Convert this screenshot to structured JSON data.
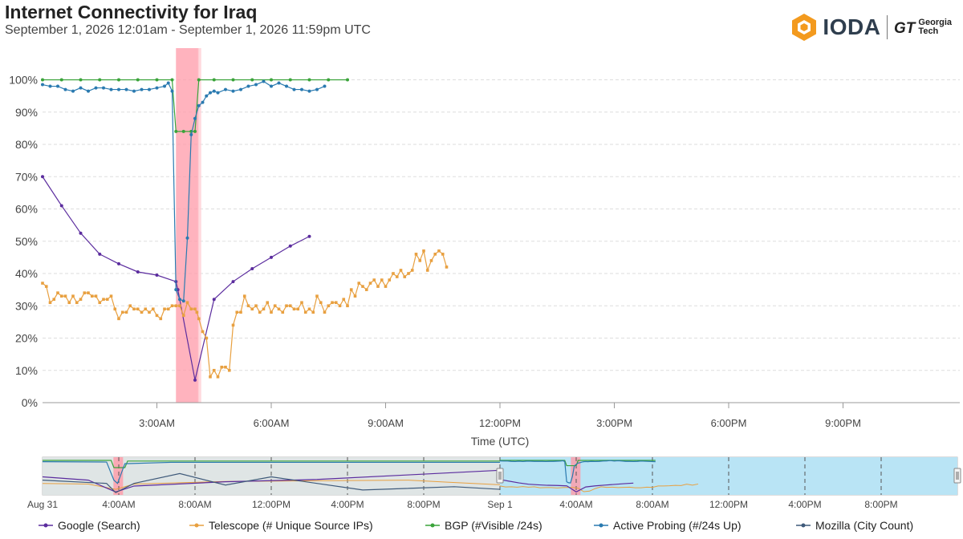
{
  "header": {
    "title": "Internet Connectivity for Iraq",
    "subtitle": "September 1, 2026 12:01am - September 1, 2026 11:59pm UTC",
    "logo_text": "IODA",
    "partner_logo": "Georgia Tech"
  },
  "colors": {
    "google": "#5b2c9e",
    "telescope": "#e8a040",
    "bgp": "#3aa33a",
    "probing": "#2a7ab0",
    "mozilla": "#3f5a7a",
    "outage_band": "#ff9aa8",
    "nav_fill": "#b9e4f5",
    "ioda_orange": "#f39a1e"
  },
  "chart_data": {
    "type": "line",
    "xlabel": "Time (UTC)",
    "xlim": [
      0,
      24
    ],
    "ylim": [
      0,
      100
    ],
    "y_ticks": [
      "0%",
      "10%",
      "20%",
      "30%",
      "40%",
      "50%",
      "60%",
      "70%",
      "80%",
      "90%",
      "100%"
    ],
    "x_ticks": [
      {
        "x": 3,
        "label": "3:00AM"
      },
      {
        "x": 6,
        "label": "6:00AM"
      },
      {
        "x": 9,
        "label": "9:00AM"
      },
      {
        "x": 12,
        "label": "12:00PM"
      },
      {
        "x": 15,
        "label": "3:00PM"
      },
      {
        "x": 18,
        "label": "6:00PM"
      },
      {
        "x": 21,
        "label": "9:00PM"
      }
    ],
    "outage_band": [
      3.5,
      4.1
    ],
    "series": [
      {
        "name": "Google (Search)",
        "key": "google",
        "marker": "dot",
        "points": [
          [
            0.0,
            70
          ],
          [
            0.5,
            61
          ],
          [
            1.0,
            52.5
          ],
          [
            1.5,
            46
          ],
          [
            2.0,
            43
          ],
          [
            2.5,
            40.5
          ],
          [
            3.0,
            39.5
          ],
          [
            3.5,
            37.5
          ],
          [
            3.55,
            35
          ],
          [
            4.0,
            7
          ],
          [
            4.5,
            32
          ],
          [
            5.0,
            37.5
          ],
          [
            5.5,
            41.5
          ],
          [
            6.0,
            45
          ],
          [
            6.5,
            48.5
          ],
          [
            7.0,
            51.5
          ]
        ]
      },
      {
        "name": "Telescope (# Unique Source IPs)",
        "key": "telescope",
        "marker": "square",
        "points": [
          [
            0.0,
            37
          ],
          [
            0.1,
            36
          ],
          [
            0.2,
            31
          ],
          [
            0.3,
            32
          ],
          [
            0.4,
            34
          ],
          [
            0.5,
            33
          ],
          [
            0.6,
            33
          ],
          [
            0.7,
            31
          ],
          [
            0.8,
            33
          ],
          [
            0.9,
            31
          ],
          [
            1.0,
            32
          ],
          [
            1.1,
            34
          ],
          [
            1.2,
            34
          ],
          [
            1.3,
            33
          ],
          [
            1.4,
            33
          ],
          [
            1.5,
            31
          ],
          [
            1.6,
            32
          ],
          [
            1.7,
            32
          ],
          [
            1.8,
            33
          ],
          [
            1.9,
            29
          ],
          [
            2.0,
            26
          ],
          [
            2.1,
            28
          ],
          [
            2.2,
            28
          ],
          [
            2.3,
            30
          ],
          [
            2.4,
            29
          ],
          [
            2.5,
            29
          ],
          [
            2.6,
            28
          ],
          [
            2.7,
            29
          ],
          [
            2.8,
            28
          ],
          [
            2.9,
            29
          ],
          [
            3.0,
            27
          ],
          [
            3.1,
            26
          ],
          [
            3.2,
            29
          ],
          [
            3.3,
            29
          ],
          [
            3.4,
            30
          ],
          [
            3.5,
            30
          ],
          [
            3.6,
            30
          ],
          [
            3.7,
            27
          ],
          [
            3.8,
            31
          ],
          [
            3.9,
            29
          ],
          [
            4.0,
            29
          ],
          [
            4.05,
            28
          ],
          [
            4.1,
            26
          ],
          [
            4.2,
            22
          ],
          [
            4.3,
            20
          ],
          [
            4.4,
            8
          ],
          [
            4.5,
            10
          ],
          [
            4.6,
            8
          ],
          [
            4.7,
            11
          ],
          [
            4.8,
            11
          ],
          [
            4.9,
            10
          ],
          [
            5.0,
            24
          ],
          [
            5.1,
            28
          ],
          [
            5.2,
            28
          ],
          [
            5.3,
            33
          ],
          [
            5.4,
            30
          ],
          [
            5.5,
            29
          ],
          [
            5.6,
            30
          ],
          [
            5.7,
            28
          ],
          [
            5.8,
            29
          ],
          [
            5.9,
            31
          ],
          [
            6.0,
            28
          ],
          [
            6.1,
            30
          ],
          [
            6.2,
            29
          ],
          [
            6.3,
            28
          ],
          [
            6.4,
            30
          ],
          [
            6.5,
            30
          ],
          [
            6.6,
            29
          ],
          [
            6.7,
            29
          ],
          [
            6.8,
            31
          ],
          [
            6.9,
            28
          ],
          [
            7.0,
            29
          ],
          [
            7.1,
            28
          ],
          [
            7.2,
            33
          ],
          [
            7.3,
            31
          ],
          [
            7.4,
            28
          ],
          [
            7.5,
            30
          ],
          [
            7.6,
            31
          ],
          [
            7.7,
            31
          ],
          [
            7.8,
            30
          ],
          [
            7.9,
            32
          ],
          [
            8.0,
            30
          ],
          [
            8.1,
            35
          ],
          [
            8.2,
            33
          ],
          [
            8.3,
            37
          ],
          [
            8.4,
            36
          ],
          [
            8.5,
            35
          ],
          [
            8.6,
            37
          ],
          [
            8.7,
            38
          ],
          [
            8.8,
            36
          ],
          [
            8.9,
            38
          ],
          [
            9.0,
            36
          ],
          [
            9.1,
            38
          ],
          [
            9.2,
            40
          ],
          [
            9.3,
            39
          ],
          [
            9.4,
            41
          ],
          [
            9.5,
            39
          ],
          [
            9.6,
            40
          ],
          [
            9.7,
            41
          ],
          [
            9.8,
            46
          ],
          [
            9.9,
            44
          ],
          [
            10.0,
            47
          ],
          [
            10.1,
            41
          ],
          [
            10.2,
            44
          ],
          [
            10.3,
            46
          ],
          [
            10.4,
            47
          ],
          [
            10.5,
            46
          ],
          [
            10.6,
            42
          ]
        ]
      },
      {
        "name": "BGP (#Visible /24s)",
        "key": "bgp",
        "marker": "dot",
        "points": [
          [
            0.0,
            100
          ],
          [
            0.5,
            100
          ],
          [
            1.0,
            100
          ],
          [
            1.5,
            100
          ],
          [
            2.0,
            100
          ],
          [
            2.5,
            100
          ],
          [
            3.0,
            100
          ],
          [
            3.4,
            100
          ],
          [
            3.5,
            84
          ],
          [
            3.7,
            84
          ],
          [
            3.9,
            84
          ],
          [
            4.0,
            84
          ],
          [
            4.1,
            100
          ],
          [
            4.5,
            100
          ],
          [
            5.0,
            100
          ],
          [
            5.5,
            100
          ],
          [
            6.0,
            100
          ],
          [
            6.5,
            100
          ],
          [
            7.0,
            100
          ],
          [
            7.5,
            100
          ],
          [
            8.0,
            100
          ]
        ]
      },
      {
        "name": "Active Probing (#/24s Up)",
        "key": "probing",
        "marker": "dot",
        "points": [
          [
            0.0,
            98.5
          ],
          [
            0.2,
            98
          ],
          [
            0.4,
            98
          ],
          [
            0.6,
            97
          ],
          [
            0.8,
            96.5
          ],
          [
            1.0,
            97.5
          ],
          [
            1.2,
            96.5
          ],
          [
            1.4,
            97.5
          ],
          [
            1.6,
            97.5
          ],
          [
            1.8,
            97
          ],
          [
            2.0,
            97
          ],
          [
            2.2,
            97
          ],
          [
            2.4,
            96.5
          ],
          [
            2.6,
            97
          ],
          [
            2.8,
            97
          ],
          [
            3.0,
            97.5
          ],
          [
            3.2,
            98
          ],
          [
            3.3,
            99
          ],
          [
            3.4,
            96.5
          ],
          [
            3.5,
            35
          ],
          [
            3.6,
            32
          ],
          [
            3.7,
            31.5
          ],
          [
            3.8,
            51
          ],
          [
            3.9,
            83
          ],
          [
            4.0,
            88
          ],
          [
            4.1,
            92
          ],
          [
            4.2,
            93
          ],
          [
            4.3,
            95
          ],
          [
            4.4,
            96
          ],
          [
            4.5,
            96.5
          ],
          [
            4.6,
            96
          ],
          [
            4.8,
            97
          ],
          [
            5.0,
            96.5
          ],
          [
            5.2,
            97
          ],
          [
            5.4,
            98
          ],
          [
            5.6,
            98.5
          ],
          [
            5.8,
            99.5
          ],
          [
            6.0,
            98
          ],
          [
            6.2,
            99
          ],
          [
            6.4,
            98
          ],
          [
            6.6,
            97
          ],
          [
            6.8,
            97
          ],
          [
            7.0,
            96.5
          ],
          [
            7.2,
            97
          ],
          [
            7.4,
            98
          ]
        ]
      }
    ],
    "legend": [
      {
        "name": "Google (Search)",
        "key": "google"
      },
      {
        "name": "Telescope (# Unique Source IPs)",
        "key": "telescope"
      },
      {
        "name": "BGP (#Visible /24s)",
        "key": "bgp"
      },
      {
        "name": "Active Probing (#/24s Up)",
        "key": "probing"
      },
      {
        "name": "Mozilla (City Count)",
        "key": "mozilla"
      }
    ],
    "navigator": {
      "x_ticks": [
        "Aug 31",
        "4:00AM",
        "8:00AM",
        "12:00PM",
        "4:00PM",
        "8:00PM",
        "Sep 1",
        "4:00AM",
        "8:00AM",
        "12:00PM",
        "4:00PM",
        "8:00PM"
      ],
      "selected_range": "Sep 1"
    }
  }
}
